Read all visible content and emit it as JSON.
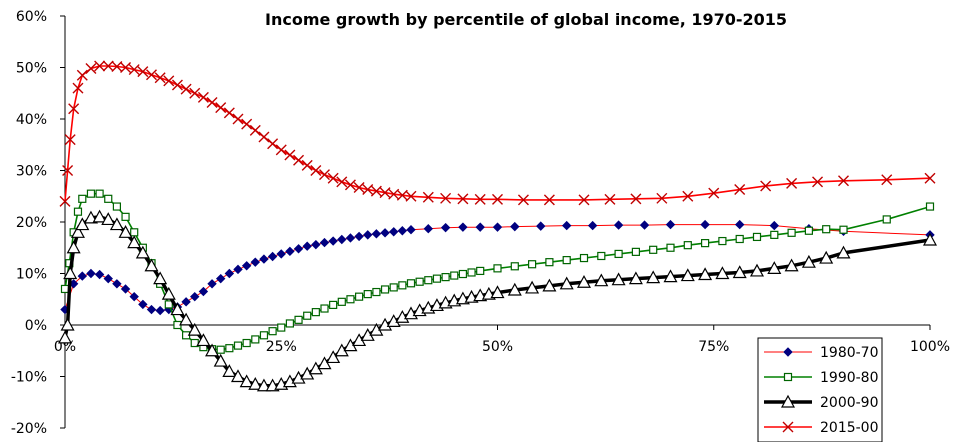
{
  "chart_data": {
    "type": "line",
    "title": "Income growth by percentile of global income, 1970-2015",
    "xlabel": "",
    "ylabel": "",
    "xlim": [
      0,
      100
    ],
    "ylim": [
      -20,
      60
    ],
    "x_ticks": [
      0,
      25,
      50,
      75,
      100
    ],
    "x_tick_labels": [
      "0%",
      "25%",
      "50%",
      "75%",
      "100%"
    ],
    "y_ticks": [
      -20,
      -10,
      0,
      10,
      20,
      30,
      40,
      50,
      60
    ],
    "y_tick_labels": [
      "-20%",
      "-10%",
      "0%",
      "10%",
      "20%",
      "30%",
      "40%",
      "50%",
      "60%"
    ],
    "grid": false,
    "legend_position": "bottom-right",
    "series": [
      {
        "name": "1980-70",
        "color": "#000080",
        "line_color": "#ff0000",
        "marker": "diamond",
        "points": [
          [
            0,
            3
          ],
          [
            1,
            8
          ],
          [
            2,
            9.5
          ],
          [
            3,
            10
          ],
          [
            4,
            9.8
          ],
          [
            5,
            9
          ],
          [
            6,
            8
          ],
          [
            7,
            7
          ],
          [
            8,
            5.5
          ],
          [
            9,
            4
          ],
          [
            10,
            3
          ],
          [
            11,
            2.8
          ],
          [
            12,
            3
          ],
          [
            13,
            3.5
          ],
          [
            14,
            4.5
          ],
          [
            15,
            5.5
          ],
          [
            16,
            6.5
          ],
          [
            17,
            8
          ],
          [
            18,
            9
          ],
          [
            19,
            10
          ],
          [
            20,
            10.8
          ],
          [
            21,
            11.5
          ],
          [
            22,
            12.2
          ],
          [
            23,
            12.8
          ],
          [
            24,
            13.3
          ],
          [
            25,
            13.8
          ],
          [
            26,
            14.3
          ],
          [
            27,
            14.8
          ],
          [
            28,
            15.3
          ],
          [
            29,
            15.6
          ],
          [
            30,
            16
          ],
          [
            31,
            16.3
          ],
          [
            32,
            16.6
          ],
          [
            33,
            16.9
          ],
          [
            34,
            17.2
          ],
          [
            35,
            17.5
          ],
          [
            36,
            17.7
          ],
          [
            37,
            17.9
          ],
          [
            38,
            18.1
          ],
          [
            39,
            18.3
          ],
          [
            40,
            18.5
          ],
          [
            42,
            18.7
          ],
          [
            44,
            18.9
          ],
          [
            46,
            19
          ],
          [
            48,
            19
          ],
          [
            50,
            19
          ],
          [
            52,
            19.1
          ],
          [
            55,
            19.2
          ],
          [
            58,
            19.3
          ],
          [
            61,
            19.3
          ],
          [
            64,
            19.4
          ],
          [
            67,
            19.4
          ],
          [
            70,
            19.5
          ],
          [
            74,
            19.5
          ],
          [
            78,
            19.5
          ],
          [
            82,
            19.3
          ],
          [
            86,
            18.7
          ],
          [
            90,
            18.2
          ],
          [
            100,
            17.5
          ]
        ]
      },
      {
        "name": "1990-80",
        "color": "#006400",
        "line_color": "#008000",
        "marker": "square",
        "points": [
          [
            0,
            7
          ],
          [
            0.5,
            12
          ],
          [
            1,
            18
          ],
          [
            1.5,
            22
          ],
          [
            2,
            24.5
          ],
          [
            3,
            25.5
          ],
          [
            4,
            25.5
          ],
          [
            5,
            24.5
          ],
          [
            6,
            23
          ],
          [
            7,
            21
          ],
          [
            8,
            18
          ],
          [
            9,
            15
          ],
          [
            10,
            12
          ],
          [
            11,
            8
          ],
          [
            12,
            4
          ],
          [
            13,
            0
          ],
          [
            14,
            -2
          ],
          [
            15,
            -3.5
          ],
          [
            16,
            -4.3
          ],
          [
            17,
            -4.7
          ],
          [
            18,
            -4.8
          ],
          [
            19,
            -4.5
          ],
          [
            20,
            -4
          ],
          [
            21,
            -3.5
          ],
          [
            22,
            -2.8
          ],
          [
            23,
            -2
          ],
          [
            24,
            -1.2
          ],
          [
            25,
            -0.5
          ],
          [
            26,
            0.3
          ],
          [
            27,
            1
          ],
          [
            28,
            1.8
          ],
          [
            29,
            2.5
          ],
          [
            30,
            3.2
          ],
          [
            31,
            3.9
          ],
          [
            32,
            4.5
          ],
          [
            33,
            5
          ],
          [
            34,
            5.5
          ],
          [
            35,
            6
          ],
          [
            36,
            6.4
          ],
          [
            37,
            6.9
          ],
          [
            38,
            7.3
          ],
          [
            39,
            7.7
          ],
          [
            40,
            8.1
          ],
          [
            41,
            8.4
          ],
          [
            42,
            8.7
          ],
          [
            43,
            9
          ],
          [
            44,
            9.3
          ],
          [
            45,
            9.6
          ],
          [
            46,
            9.9
          ],
          [
            47,
            10.2
          ],
          [
            48,
            10.5
          ],
          [
            50,
            11
          ],
          [
            52,
            11.4
          ],
          [
            54,
            11.8
          ],
          [
            56,
            12.2
          ],
          [
            58,
            12.6
          ],
          [
            60,
            13
          ],
          [
            62,
            13.4
          ],
          [
            64,
            13.8
          ],
          [
            66,
            14.2
          ],
          [
            68,
            14.6
          ],
          [
            70,
            15
          ],
          [
            72,
            15.5
          ],
          [
            74,
            15.9
          ],
          [
            76,
            16.3
          ],
          [
            78,
            16.7
          ],
          [
            80,
            17.1
          ],
          [
            82,
            17.5
          ],
          [
            84,
            17.9
          ],
          [
            86,
            18.3
          ],
          [
            88,
            18.6
          ],
          [
            90,
            18.5
          ],
          [
            95,
            20.5
          ],
          [
            100,
            23
          ]
        ]
      },
      {
        "name": "2000-90",
        "color": "#000000",
        "line_color": "#000000",
        "marker": "triangle",
        "points": [
          [
            0,
            -2.5
          ],
          [
            0.3,
            0
          ],
          [
            0.6,
            10
          ],
          [
            1,
            15
          ],
          [
            1.5,
            18
          ],
          [
            2,
            19.5
          ],
          [
            3,
            20.8
          ],
          [
            4,
            21
          ],
          [
            5,
            20.5
          ],
          [
            6,
            19.5
          ],
          [
            7,
            18
          ],
          [
            8,
            16
          ],
          [
            9,
            14
          ],
          [
            10,
            11.5
          ],
          [
            11,
            9
          ],
          [
            12,
            6
          ],
          [
            13,
            3
          ],
          [
            14,
            1
          ],
          [
            15,
            -1
          ],
          [
            16,
            -3
          ],
          [
            17,
            -5
          ],
          [
            18,
            -7
          ],
          [
            19,
            -9
          ],
          [
            20,
            -10
          ],
          [
            21,
            -11
          ],
          [
            22,
            -11.5
          ],
          [
            23,
            -11.8
          ],
          [
            24,
            -11.8
          ],
          [
            25,
            -11.5
          ],
          [
            26,
            -11
          ],
          [
            27,
            -10.3
          ],
          [
            28,
            -9.5
          ],
          [
            29,
            -8.5
          ],
          [
            30,
            -7.5
          ],
          [
            31,
            -6.3
          ],
          [
            32,
            -5
          ],
          [
            33,
            -4
          ],
          [
            34,
            -3
          ],
          [
            35,
            -2
          ],
          [
            36,
            -1
          ],
          [
            37,
            0
          ],
          [
            38,
            0.7
          ],
          [
            39,
            1.5
          ],
          [
            40,
            2.2
          ],
          [
            41,
            2.8
          ],
          [
            42,
            3.3
          ],
          [
            43,
            3.8
          ],
          [
            44,
            4.3
          ],
          [
            45,
            4.7
          ],
          [
            46,
            5.1
          ],
          [
            47,
            5.4
          ],
          [
            48,
            5.7
          ],
          [
            49,
            6
          ],
          [
            50,
            6.3
          ],
          [
            52,
            6.8
          ],
          [
            54,
            7.2
          ],
          [
            56,
            7.6
          ],
          [
            58,
            8
          ],
          [
            60,
            8.3
          ],
          [
            62,
            8.6
          ],
          [
            64,
            8.8
          ],
          [
            66,
            9
          ],
          [
            68,
            9.2
          ],
          [
            70,
            9.4
          ],
          [
            72,
            9.6
          ],
          [
            74,
            9.8
          ],
          [
            76,
            10
          ],
          [
            78,
            10.2
          ],
          [
            80,
            10.5
          ],
          [
            82,
            11
          ],
          [
            84,
            11.5
          ],
          [
            86,
            12.2
          ],
          [
            88,
            13
          ],
          [
            90,
            14
          ],
          [
            100,
            16.5
          ]
        ]
      },
      {
        "name": "2015-00",
        "color": "#c00000",
        "line_color": "#ff0000",
        "marker": "x",
        "points": [
          [
            0,
            24
          ],
          [
            0.3,
            30
          ],
          [
            0.6,
            36
          ],
          [
            1,
            42
          ],
          [
            1.5,
            46
          ],
          [
            2,
            48.5
          ],
          [
            3,
            49.8
          ],
          [
            4,
            50.3
          ],
          [
            5,
            50.3
          ],
          [
            6,
            50.2
          ],
          [
            7,
            50
          ],
          [
            8,
            49.6
          ],
          [
            9,
            49.2
          ],
          [
            10,
            48.6
          ],
          [
            11,
            48
          ],
          [
            12,
            47.4
          ],
          [
            13,
            46.6
          ],
          [
            14,
            45.8
          ],
          [
            15,
            45
          ],
          [
            16,
            44.2
          ],
          [
            17,
            43.2
          ],
          [
            18,
            42.2
          ],
          [
            19,
            41.2
          ],
          [
            20,
            40
          ],
          [
            21,
            39
          ],
          [
            22,
            37.8
          ],
          [
            23,
            36.5
          ],
          [
            24,
            35.2
          ],
          [
            25,
            34
          ],
          [
            26,
            33
          ],
          [
            27,
            32
          ],
          [
            28,
            31
          ],
          [
            29,
            30
          ],
          [
            30,
            29.2
          ],
          [
            31,
            28.5
          ],
          [
            32,
            27.8
          ],
          [
            33,
            27.2
          ],
          [
            34,
            26.7
          ],
          [
            35,
            26.3
          ],
          [
            36,
            26
          ],
          [
            37,
            25.7
          ],
          [
            38,
            25.4
          ],
          [
            39,
            25.2
          ],
          [
            40,
            25
          ],
          [
            42,
            24.8
          ],
          [
            44,
            24.6
          ],
          [
            46,
            24.5
          ],
          [
            48,
            24.4
          ],
          [
            50,
            24.4
          ],
          [
            53,
            24.3
          ],
          [
            56,
            24.3
          ],
          [
            60,
            24.3
          ],
          [
            63,
            24.4
          ],
          [
            66,
            24.5
          ],
          [
            69,
            24.6
          ],
          [
            72,
            25
          ],
          [
            75,
            25.6
          ],
          [
            78,
            26.3
          ],
          [
            81,
            27
          ],
          [
            84,
            27.5
          ],
          [
            87,
            27.8
          ],
          [
            90,
            28
          ],
          [
            95,
            28.2
          ],
          [
            100,
            28.5
          ]
        ]
      }
    ]
  }
}
